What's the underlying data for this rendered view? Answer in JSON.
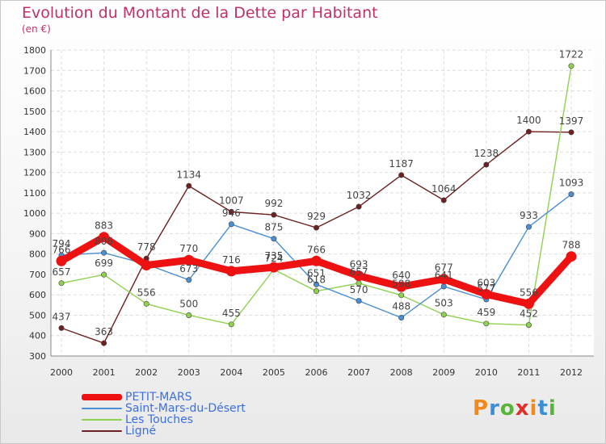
{
  "header": {
    "title": "Evolution du Montant de la Dette par Habitant",
    "subtitle": "(en €)"
  },
  "logo": {
    "letters": [
      "P",
      "r",
      "o",
      "x",
      "i",
      "t",
      "i"
    ],
    "colors": [
      "#f08a1c",
      "#3a8fd6",
      "#5ab43c",
      "#e0302a",
      "#f08a1c",
      "#3a8fd6",
      "#5ab43c"
    ]
  },
  "chart_data": {
    "type": "line",
    "x": [
      "2000",
      "2001",
      "2002",
      "2003",
      "2004",
      "2005",
      "2006",
      "2007",
      "2008",
      "2009",
      "2010",
      "2011",
      "2012"
    ],
    "ylim": [
      300,
      1800
    ],
    "yticks": [
      "300",
      "400",
      "500",
      "600",
      "700",
      "800",
      "900",
      "1000",
      "1100",
      "1200",
      "1300",
      "1400",
      "1500",
      "1600",
      "1700",
      "1800"
    ],
    "grid": true,
    "legend_position": "bottom-left",
    "series": [
      {
        "name": "PETIT-MARS",
        "color": "#ee1111",
        "values": [
          766,
          883,
          745,
          770,
          716,
          735,
          766,
          693,
          640,
          677,
          603,
          556,
          788
        ],
        "labels": [
          "766",
          "883",
          "",
          "770",
          "716",
          "735",
          "766",
          "693",
          "640",
          "677",
          "603",
          "556",
          "788"
        ]
      },
      {
        "name": "Saint-Mars-du-Désert",
        "color": "#4a8fd4",
        "values": [
          794,
          806,
          750,
          673,
          946,
          875,
          651,
          570,
          488,
          641,
          577,
          933,
          1093
        ],
        "labels": [
          "794",
          "806",
          "",
          "673",
          "946",
          "875",
          "651",
          "570",
          "488",
          "641",
          "577",
          "933",
          "1093"
        ]
      },
      {
        "name": "Les Touches",
        "color": "#8fd14f",
        "values": [
          657,
          699,
          556,
          500,
          455,
          724,
          618,
          657,
          598,
          503,
          459,
          452,
          1722
        ],
        "labels": [
          "657",
          "699",
          "556",
          "500",
          "455",
          "724",
          "618",
          "657",
          "598",
          "503",
          "459",
          "452",
          "1722"
        ]
      },
      {
        "name": "Ligné",
        "color": "#6e1f1f",
        "values": [
          437,
          363,
          778,
          1134,
          1007,
          992,
          929,
          1032,
          1187,
          1064,
          1238,
          1400,
          1397
        ],
        "labels": [
          "437",
          "363",
          "778",
          "1134",
          "1007",
          "992",
          "929",
          "1032",
          "1187",
          "1064",
          "1238",
          "1400",
          "1397"
        ]
      }
    ]
  }
}
